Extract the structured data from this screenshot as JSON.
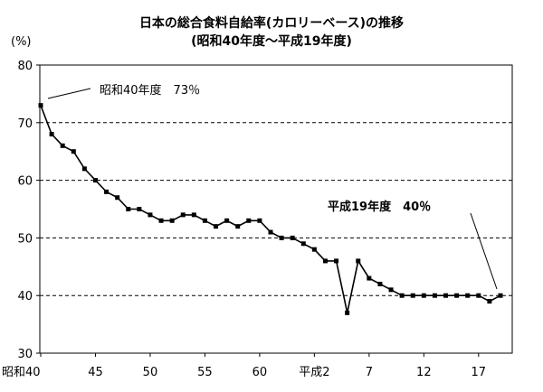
{
  "chart_data": {
    "type": "line",
    "title": "日本の総合食料自給率(カロリーベース)の推移",
    "subtitle": "(昭和40年度～平成19年度)",
    "ylabel": "(%)",
    "ylim": [
      30,
      80
    ],
    "yticks": [
      30,
      40,
      50,
      60,
      70,
      80
    ],
    "grid": "dashed horizontal at 40, 50, 60, 70",
    "x_tick_labels": [
      {
        "x": 0,
        "label": "昭和40"
      },
      {
        "x": 5,
        "label": "45"
      },
      {
        "x": 10,
        "label": "50"
      },
      {
        "x": 15,
        "label": "55"
      },
      {
        "x": 20,
        "label": "60"
      },
      {
        "x": 25,
        "label": "平成2"
      },
      {
        "x": 30,
        "label": "7"
      },
      {
        "x": 35,
        "label": "12"
      },
      {
        "x": 40,
        "label": "17"
      }
    ],
    "series": [
      {
        "x": [
          0,
          1,
          2,
          3,
          4,
          5,
          6,
          7,
          8,
          9,
          10,
          11,
          12,
          13,
          14,
          15,
          16,
          17,
          18,
          19,
          20,
          21,
          22,
          23,
          24,
          25,
          26,
          27,
          28,
          29,
          30,
          31,
          32,
          33,
          34,
          35,
          36,
          37,
          38,
          39,
          40,
          41,
          42
        ],
        "values": [
          73,
          68,
          66,
          65,
          62,
          60,
          58,
          57,
          55,
          55,
          54,
          53,
          53,
          54,
          54,
          53,
          52,
          53,
          52,
          53,
          53,
          51,
          50,
          50,
          49,
          48,
          46,
          46,
          37,
          46,
          43,
          42,
          41,
          40,
          40,
          40,
          40,
          40,
          40,
          40,
          40,
          39,
          40
        ]
      }
    ],
    "annotations": [
      {
        "text": "昭和40年度　73％",
        "x": 0,
        "y": 73
      },
      {
        "text": "平成19年度　40％",
        "x": 42,
        "y": 40
      }
    ]
  }
}
